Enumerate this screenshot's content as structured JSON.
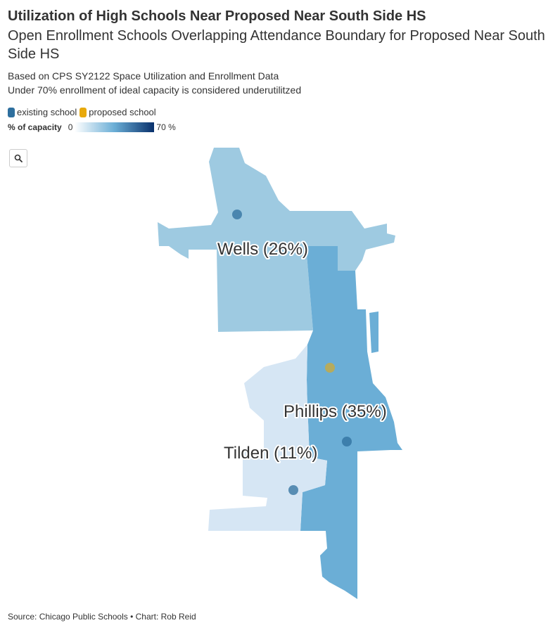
{
  "header": {
    "title": "Utilization of High Schools Near Proposed Near South Side HS",
    "subtitle": "Open Enrollment Schools Overlapping Attendance Boundary for Proposed Near South Side HS",
    "description_line1": "Based on CPS SY2122 Space Utilization and Enrollment Data",
    "description_line2": "Under 70% enrollment of ideal capacity is considered underutilitzed"
  },
  "legend": {
    "existing_label": "existing school",
    "existing_color": "#2e6f9e",
    "proposed_label": "proposed school",
    "proposed_color": "#e8a90c",
    "scale_label": "% of capacity",
    "scale_min": "0",
    "scale_max": "70 %",
    "scale_colors": [
      "#ffffff",
      "#6baed6",
      "#08306b"
    ]
  },
  "controls": {
    "search_icon": "search-icon"
  },
  "map": {
    "regions": [
      {
        "name": "Wells",
        "utilization": 26,
        "label": "Wells (26%)",
        "color": "#9ecae1"
      },
      {
        "name": "Phillips",
        "utilization": 35,
        "label": "Phillips (35%)",
        "color": "#6baed6"
      },
      {
        "name": "Tilden",
        "utilization": 11,
        "label": "Tilden (11%)",
        "color": "#d6e6f4"
      }
    ]
  },
  "footer": {
    "source": "Source: Chicago Public Schools • Chart: Rob Reid"
  }
}
